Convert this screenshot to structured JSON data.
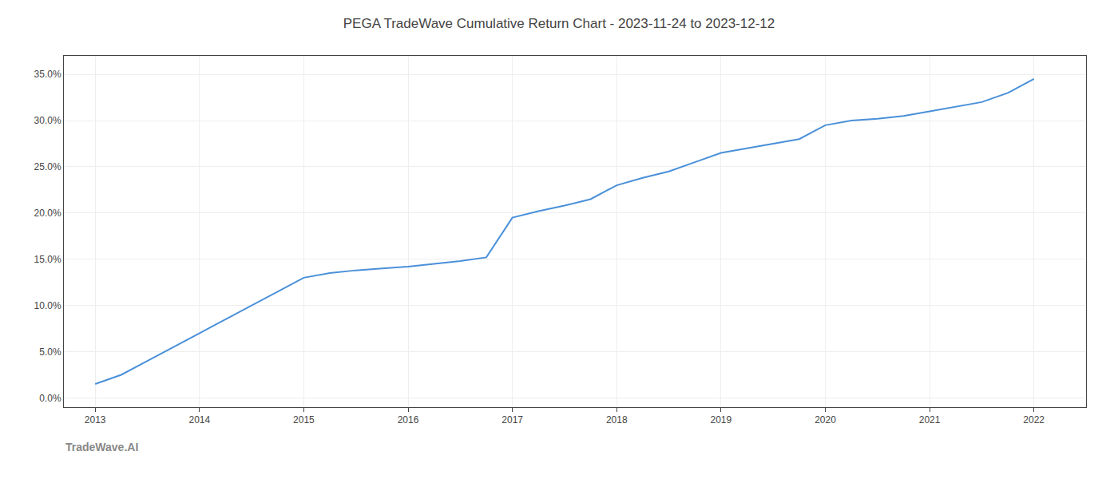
{
  "chart_data": {
    "type": "line",
    "title": "PEGA TradeWave Cumulative Return Chart - 2023-11-24 to 2023-12-12",
    "annotations": [
      {
        "text": "TradeWave.AI"
      }
    ],
    "x": [
      2013,
      2013.25,
      2013.5,
      2013.75,
      2014.0,
      2014.25,
      2014.5,
      2014.75,
      2015.0,
      2015.25,
      2015.5,
      2015.75,
      2016.0,
      2016.25,
      2016.5,
      2016.75,
      2017.0,
      2017.25,
      2017.5,
      2017.75,
      2018.0,
      2018.25,
      2018.5,
      2018.75,
      2019.0,
      2019.25,
      2019.5,
      2019.75,
      2020.0,
      2020.25,
      2020.5,
      2020.75,
      2021.0,
      2021.25,
      2021.5,
      2021.75,
      2022.0
    ],
    "values": [
      1.5,
      2.5,
      4.0,
      5.5,
      7.0,
      8.5,
      10.0,
      11.5,
      13.0,
      13.5,
      13.8,
      14.0,
      14.2,
      14.5,
      14.8,
      15.2,
      19.5,
      20.2,
      20.8,
      21.5,
      23.0,
      23.8,
      24.5,
      25.5,
      26.5,
      27.0,
      27.5,
      28.0,
      29.5,
      30.0,
      30.2,
      30.5,
      31.0,
      31.5,
      32.0,
      33.0,
      34.5
    ],
    "color": "#4a90d9",
    "xlim": [
      2012.7,
      2022.5
    ],
    "xticks": [
      2013,
      2014,
      2015,
      2016,
      2017,
      2018,
      2019,
      2020,
      2021,
      2022
    ],
    "ylim": [
      -1.0,
      37.0
    ],
    "yticks": [
      {
        "value": 0.0,
        "label": "0.0%"
      },
      {
        "value": 5.0,
        "label": "5.0%"
      },
      {
        "value": 10.0,
        "label": "10.0%"
      },
      {
        "value": 15.0,
        "label": "15.0%"
      },
      {
        "value": 20.0,
        "label": "20.0%"
      },
      {
        "value": 25.0,
        "label": "25.0%"
      },
      {
        "value": 30.0,
        "label": "30.0%"
      },
      {
        "value": 35.0,
        "label": "35.0%"
      }
    ],
    "grid": true
  }
}
